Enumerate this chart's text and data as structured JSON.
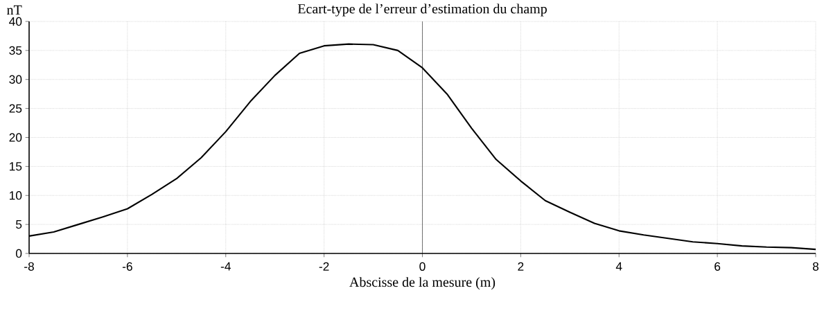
{
  "chart_data": {
    "type": "line",
    "title": "Ecart-type de l’erreur d’estimation du champ",
    "xlabel": "Abscisse de la mesure (m)",
    "ylabel": "nT",
    "x": [
      -8,
      -7.5,
      -7,
      -6.5,
      -6,
      -5.5,
      -5,
      -4.5,
      -4,
      -3.5,
      -3,
      -2.5,
      -2,
      -1.5,
      -1,
      -0.5,
      0,
      0.5,
      1,
      1.5,
      2,
      2.5,
      3,
      3.5,
      4,
      4.5,
      5,
      5.5,
      6,
      6.5,
      7,
      7.5,
      8
    ],
    "values": [
      3,
      3.7,
      5,
      6.3,
      7.7,
      10.2,
      12.9,
      16.5,
      21,
      26.2,
      30.7,
      34.5,
      35.8,
      36.1,
      36,
      35,
      32,
      27.5,
      21.6,
      16.2,
      12.5,
      9.1,
      7.1,
      5.2,
      3.9,
      3.2,
      2.6,
      2,
      1.7,
      1.3,
      1.1,
      1,
      0.7
    ],
    "color": "#000000",
    "xlim": [
      -8,
      8
    ],
    "ylim": [
      0,
      40
    ],
    "xticks": [
      -8,
      -6,
      -4,
      -2,
      0,
      2,
      4,
      6,
      8
    ],
    "yticks": [
      0,
      5,
      10,
      15,
      20,
      25,
      30,
      35,
      40
    ],
    "grid": true,
    "ref_lines": [
      {
        "axis": "x",
        "value": 0,
        "color": "#000000"
      }
    ]
  }
}
